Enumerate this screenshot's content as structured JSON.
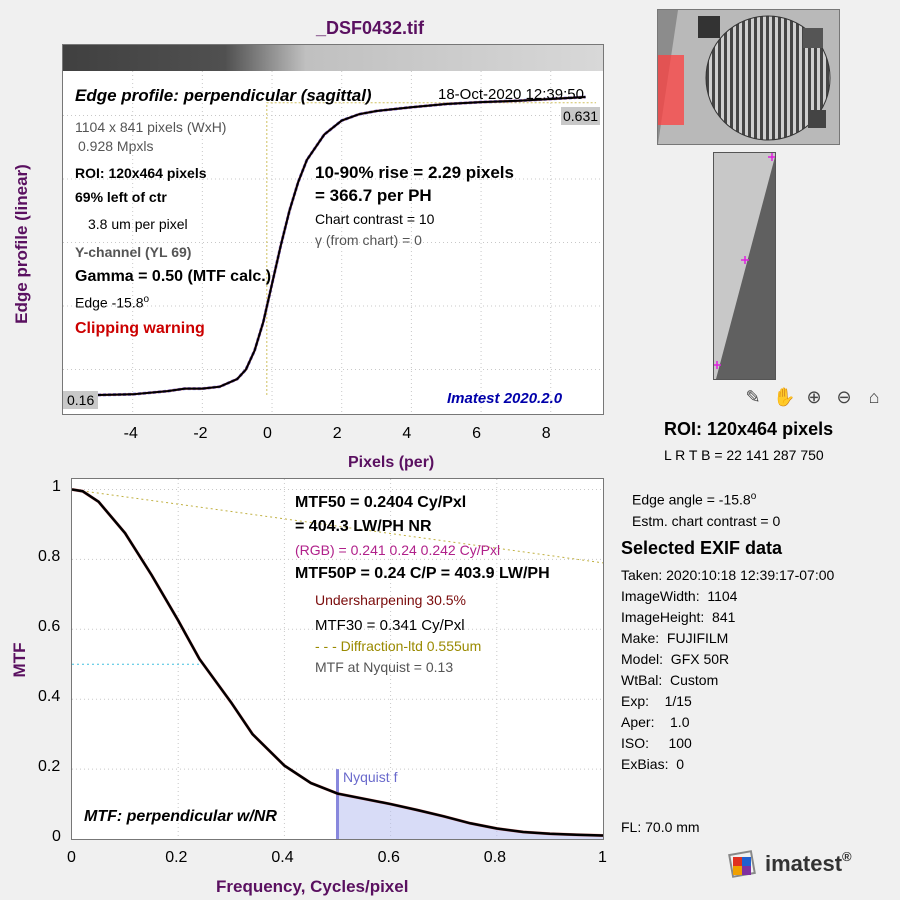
{
  "title": "_DSF0432.tif",
  "edge_plot": {
    "heading": "Edge profile: perpendicular (sagittal)",
    "timestamp": "18-Oct-2020 12:39:50",
    "ylabel": "Edge profile (linear)",
    "xlabel": "Pixels (per)",
    "xticks": [
      "-4",
      "-2",
      "0",
      "2",
      "4",
      "6",
      "8"
    ],
    "level_high": "0.631",
    "level_low": "0.16",
    "info": {
      "dims": "1104 x 841 pixels (WxH)",
      "mpx": "0.928 Mpxls",
      "roi": "ROI:  120x464 pixels",
      "pos": "69% left of ctr",
      "um": "3.8 um per pixel",
      "channel": "Y-channel  (YL 69)",
      "gamma": "Gamma = 0.50 (MTF calc.)",
      "edge_prefix": "Edge  -15.8",
      "edge_sup": "o",
      "clipping": "Clipping warning"
    },
    "rise": "10-90% rise = 2.29 pixels",
    "per_ph": "=  366.7 per PH",
    "contrast": "Chart contrast = 10",
    "gamma_chart_sym": "γ",
    "gamma_chart_text": "(from chart) =     0",
    "version": "Imatest 2020.2.0"
  },
  "mtf_plot": {
    "ylabel": "MTF",
    "xlabel": "Frequency, Cycles/pixel",
    "xticks": [
      "0",
      "0.2",
      "0.4",
      "0.6",
      "0.8",
      "1"
    ],
    "yticks": [
      "0",
      "0.2",
      "0.4",
      "0.6",
      "0.8",
      "1"
    ],
    "mtf50": "MTF50 = 0.2404 Cy/Pxl",
    "mtf50_lw": "= 404.3 LW/PH  NR",
    "rgb": "(RGB) = 0.241  0.24  0.242 Cy/Pxl",
    "mtf50p": "MTF50P = 0.24 C/P = 403.9 LW/PH",
    "undersharp": "Undersharpening 30.5%",
    "mtf30": "MTF30 = 0.341 Cy/Pxl",
    "diffraction": "- - - Diffraction-ltd  0.555um",
    "nyq_mtf": "MTF at Nyquist = 0.13",
    "nyquist_label": "Nyquist f",
    "heading": "MTF: perpendicular w/NR"
  },
  "roi_panel": {
    "title": "ROI:  120x464 pixels",
    "coords": "L R  T B = 22 141  287 750"
  },
  "edge_angle_prefix": "Edge angle = -15.8",
  "edge_angle_sup": "o",
  "estm_contrast": "Estm. chart contrast = 0",
  "exif": {
    "heading": "Selected EXIF data",
    "rows": [
      "Taken: 2020:10:18 12:39:17-07:00",
      "ImageWidth:  1104",
      "ImageHeight:  841",
      "Make:  FUJIFILM",
      "Model:  GFX 50R",
      "WtBal:  Custom",
      "Exp:    1/15",
      "Aper:    1.0",
      "ISO:     100",
      "ExBias:  0"
    ],
    "fl": "FL:    70.0 mm"
  },
  "logo_text": "imatest",
  "logo_reg": "®",
  "toolbar": [
    "edit-icon",
    "pan-icon",
    "zoom-in-icon",
    "zoom-out-icon",
    "home-icon"
  ],
  "chart_data": [
    {
      "type": "line",
      "xlabel": "Pixels (per)",
      "ylabel": "Edge profile (linear)",
      "xlim": [
        -6,
        9.5
      ],
      "ylim": [
        0.13,
        0.67
      ],
      "x": [
        -6,
        -5,
        -4,
        -3,
        -2.5,
        -2,
        -1.5,
        -1,
        -0.75,
        -0.5,
        -0.25,
        0,
        0.25,
        0.5,
        0.75,
        1,
        1.5,
        2,
        2.5,
        3,
        4,
        5,
        6,
        7,
        8,
        9
      ],
      "series": [
        {
          "name": "Y",
          "values": [
            0.16,
            0.16,
            0.161,
            0.166,
            0.17,
            0.17,
            0.173,
            0.185,
            0.2,
            0.23,
            0.275,
            0.335,
            0.395,
            0.45,
            0.495,
            0.53,
            0.57,
            0.592,
            0.602,
            0.607,
            0.613,
            0.618,
            0.621,
            0.623,
            0.626,
            0.629
          ]
        }
      ]
    },
    {
      "type": "line",
      "xlabel": "Frequency, Cycles/pixel",
      "ylabel": "MTF",
      "xlim": [
        0,
        1
      ],
      "ylim": [
        0,
        1.03
      ],
      "x": [
        0,
        0.02,
        0.05,
        0.1,
        0.15,
        0.2,
        0.24,
        0.3,
        0.34,
        0.4,
        0.45,
        0.5,
        0.55,
        0.6,
        0.65,
        0.7,
        0.75,
        0.8,
        0.85,
        0.9,
        0.95,
        1.0
      ],
      "series": [
        {
          "name": "MTF",
          "values": [
            1.0,
            0.995,
            0.965,
            0.875,
            0.755,
            0.625,
            0.515,
            0.39,
            0.3,
            0.21,
            0.16,
            0.13,
            0.115,
            0.1,
            0.083,
            0.065,
            0.045,
            0.03,
            0.02,
            0.015,
            0.012,
            0.01
          ]
        }
      ],
      "nyquist": 0.5,
      "mtf50_ref": 0.5
    }
  ]
}
